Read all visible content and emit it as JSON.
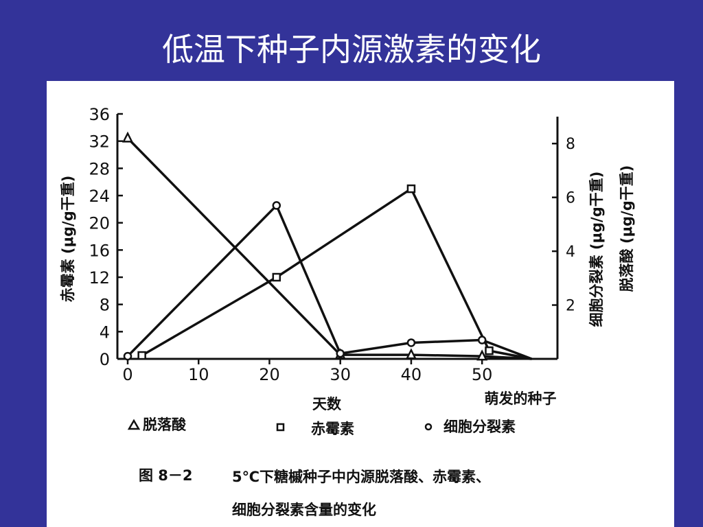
{
  "slide": {
    "title": "低温下种子内源激素的变化",
    "background": "#333399"
  },
  "chart_data": {
    "type": "line",
    "x_ticks": [
      "0",
      "10",
      "20",
      "30",
      "40",
      "50"
    ],
    "x_extra_label": "萌发的种子",
    "xlabel": "天数",
    "xlim": [
      0,
      57
    ],
    "y_left": {
      "label": "赤霉素 (μg/g干重)",
      "ticks": [
        "0",
        "4",
        "8",
        "12",
        "16",
        "20",
        "24",
        "28",
        "32",
        "36"
      ],
      "lim": [
        0,
        36
      ]
    },
    "y_right": {
      "labels": [
        "细胞分裂素 (μg/g干重)",
        "脱落酸 (μg/g干重)"
      ],
      "ticks": [
        "2",
        "4",
        "6",
        "8"
      ],
      "lim": [
        0,
        9
      ]
    },
    "series": [
      {
        "name": "脱落酸",
        "marker": "triangle",
        "axis": "right",
        "x": [
          0,
          30,
          40,
          50,
          57
        ],
        "y": [
          8.2,
          0.15,
          0.15,
          0.1,
          0.0
        ]
      },
      {
        "name": "赤霉素",
        "marker": "square",
        "axis": "left",
        "x": [
          2,
          21,
          40,
          51,
          57
        ],
        "y": [
          0.5,
          12,
          25,
          1.2,
          0.0
        ]
      },
      {
        "name": "细胞分裂素",
        "marker": "circle",
        "axis": "right",
        "x": [
          0,
          21,
          30,
          40,
          50,
          57
        ],
        "y": [
          0.1,
          5.7,
          0.2,
          0.6,
          0.7,
          0.0
        ]
      }
    ],
    "caption": {
      "label": "图 8－2",
      "line1": "5℃下糖槭种子中内源脱落酸、赤霉素、",
      "line2": "细胞分裂素含量的变化"
    }
  }
}
